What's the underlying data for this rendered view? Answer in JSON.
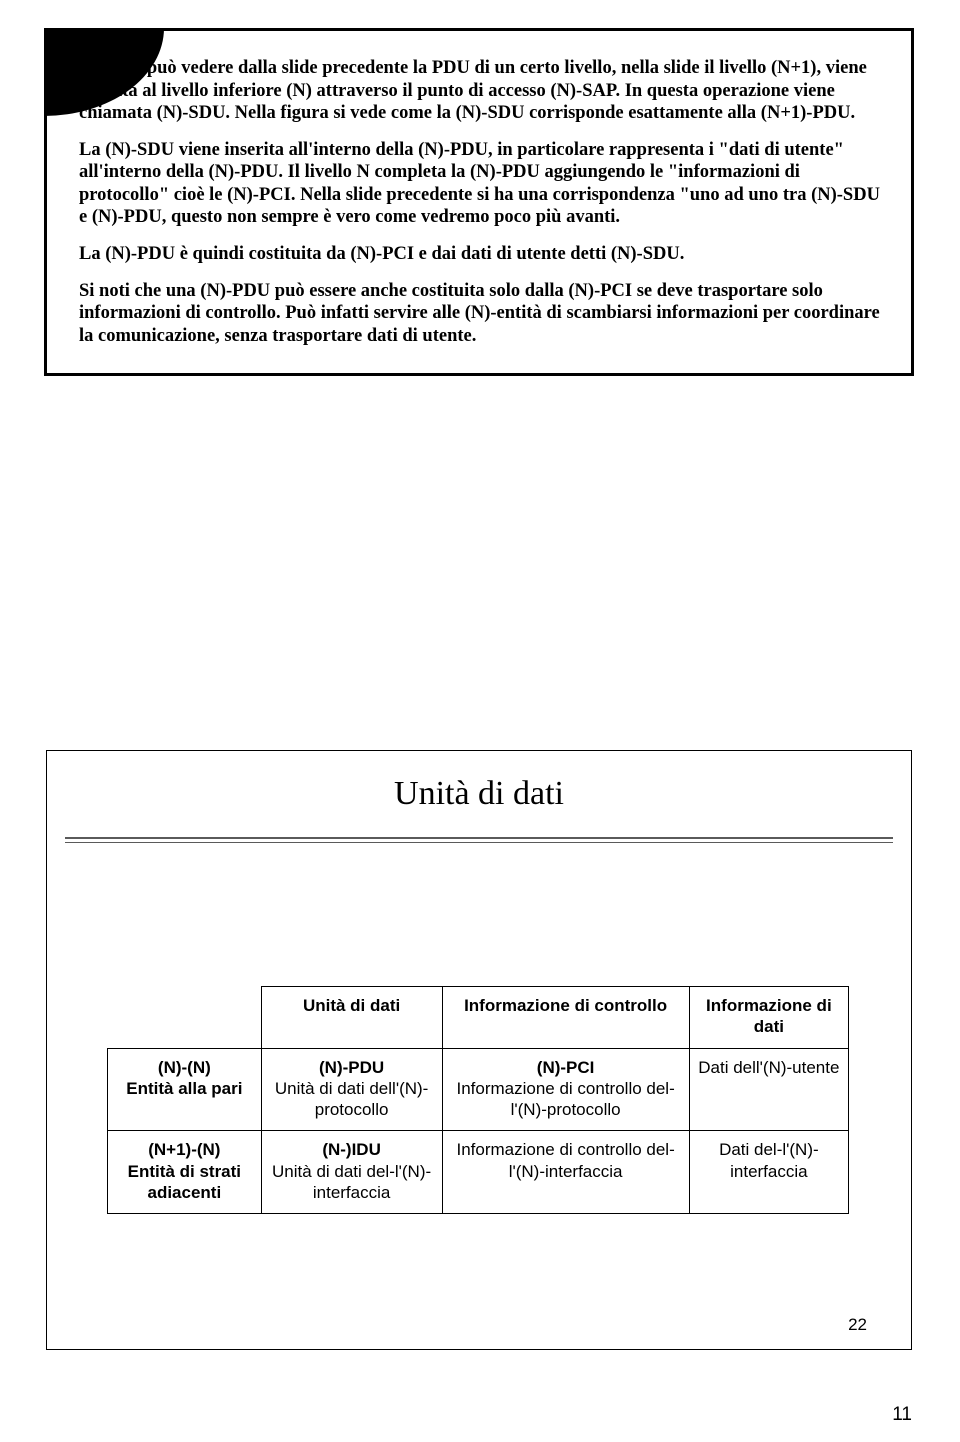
{
  "paragraphs": [
    "Come si può vedere dalla slide precedente la PDU di un certo livello, nella slide il livello (N+1), viene passata al livello inferiore (N) attraverso il punto di accesso (N)-SAP. In questa operazione viene chiamata (N)-SDU. Nella figura si vede come la (N)-SDU corrisponde esattamente alla (N+1)-PDU.",
    "La (N)-SDU viene inserita all'interno della (N)-PDU, in particolare rappresenta i \"dati di utente\" all'interno della (N)-PDU. Il livello N completa la (N)-PDU aggiungendo le \"informazioni di protocollo\" cioè le (N)-PCI. Nella slide precedente si ha una corrispondenza \"uno ad uno tra (N)-SDU e (N)-PDU, questo non sempre è vero come vedremo poco più avanti.",
    "La (N)-PDU è quindi costituita da (N)-PCI e dai dati di utente detti (N)-SDU.",
    "Si noti che una (N)-PDU può essere anche costituita solo dalla (N)-PCI se deve trasportare solo informazioni di controllo. Può infatti servire alle (N)-entità di scambiarsi informazioni per coordinare la comunicazione, senza trasportare dati di utente."
  ],
  "slide": {
    "title": "Unità di dati",
    "table": {
      "col_headers": [
        "",
        "Unità di dati",
        "Informazione di controllo",
        "Informazione di dati"
      ],
      "rows": [
        {
          "row_hdr_bold": "(N)-(N)",
          "row_hdr_sub": "Entità alla pari",
          "c1_bold": "(N)-PDU",
          "c1_sub": "Unità di dati dell'(N)-protocollo",
          "c2_bold": "(N)-PCI",
          "c2_sub": "Informazione di controllo del-l'(N)-protocollo",
          "c3": "Dati dell'(N)-utente"
        },
        {
          "row_hdr_bold": "(N+1)-(N)",
          "row_hdr_sub": "Entità di strati adiacenti",
          "c1_bold": "(N-)IDU",
          "c1_sub": "Unità di dati del-l'(N)-interfaccia",
          "c2_bold": "",
          "c2_sub": "Informazione di controllo del-l'(N)-interfaccia",
          "c3": "Dati del-l'(N)-interfaccia"
        }
      ]
    },
    "slide_number": "22"
  },
  "page_number": "11"
}
